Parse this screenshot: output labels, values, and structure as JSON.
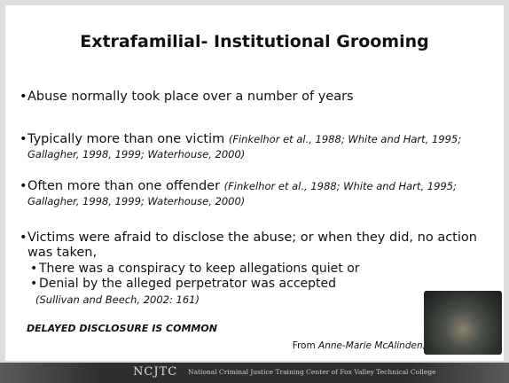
{
  "title": "Extrafamilial- Institutional Grooming",
  "bullets": [
    {
      "text": "Abuse normally took place over a number of years"
    },
    {
      "text": "Typically more than one victim",
      "citation": "(Finkelhor et al., 1988; White and Hart, 1995; Gallagher, 1998, 1999; Waterhouse, 2000)"
    },
    {
      "text": "Often more than one offender",
      "citation": "(Finkelhor et al., 1988; White and Hart, 1995; Gallagher, 1998, 1999; Waterhouse, 2000)"
    },
    {
      "text": "Victims were afraid to disclose the abuse; or when they did, no action was taken,",
      "sub_bullets": [
        "There was a conspiracy to keep allegations quiet or",
        "Denial by the alleged perpetrator was accepted"
      ],
      "citation": "(Sullivan and Beech, 2002: 161)"
    }
  ],
  "emphasis": "DELAYED DISCLOSURE IS COMMON",
  "source": {
    "prefix": "From",
    "author": "Anne-Marie McAlinden, 2006"
  },
  "footer": {
    "logo": "NCJTC",
    "text": "National Criminal Justice Training Center of Fox Valley Technical College"
  }
}
